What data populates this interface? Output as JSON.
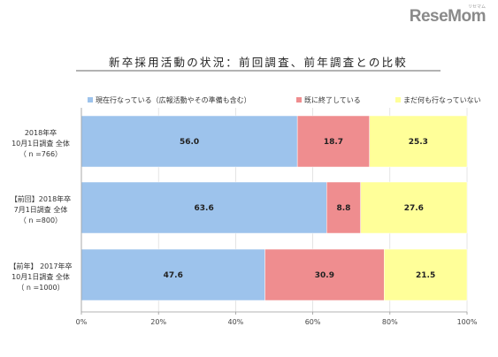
{
  "brand": {
    "logo": "ReseMom",
    "logo_sub": "リセマム"
  },
  "chart_data": {
    "type": "bar",
    "orientation": "horizontal",
    "stacked": true,
    "title": "新卒採用活動の状況：前回調査、前年調査との比較",
    "categories": [
      [
        "2018年卒",
        "10月1日調査 全体",
        "（ n =766）"
      ],
      [
        "【前回】2018年卒",
        "7月1日調査 全体",
        "（ n =800）"
      ],
      [
        "【前年】 2017年卒",
        "10月1日調査 全体",
        "（ n =1000）"
      ]
    ],
    "series": [
      {
        "name": "現在行なっている（広報活動やその準備も含む）",
        "color": "#9dc3ec",
        "values": [
          56.0,
          63.6,
          47.6
        ]
      },
      {
        "name": "既に終了している",
        "color": "#ef8d8f",
        "values": [
          18.7,
          8.8,
          30.9
        ]
      },
      {
        "name": "まだ何も行なっていない",
        "color": "#ffff99",
        "values": [
          25.3,
          27.6,
          21.5
        ]
      }
    ],
    "value_labels": [
      [
        "56.0",
        "18.7",
        "25.3"
      ],
      [
        "63.6",
        "8.8",
        "27.6"
      ],
      [
        "47.6",
        "30.9",
        "21.5"
      ]
    ],
    "xlim": [
      0,
      100
    ],
    "xticks": [
      "0%",
      "20%",
      "40%",
      "60%",
      "80%",
      "100%"
    ],
    "legend_position": "top",
    "grid": true
  }
}
